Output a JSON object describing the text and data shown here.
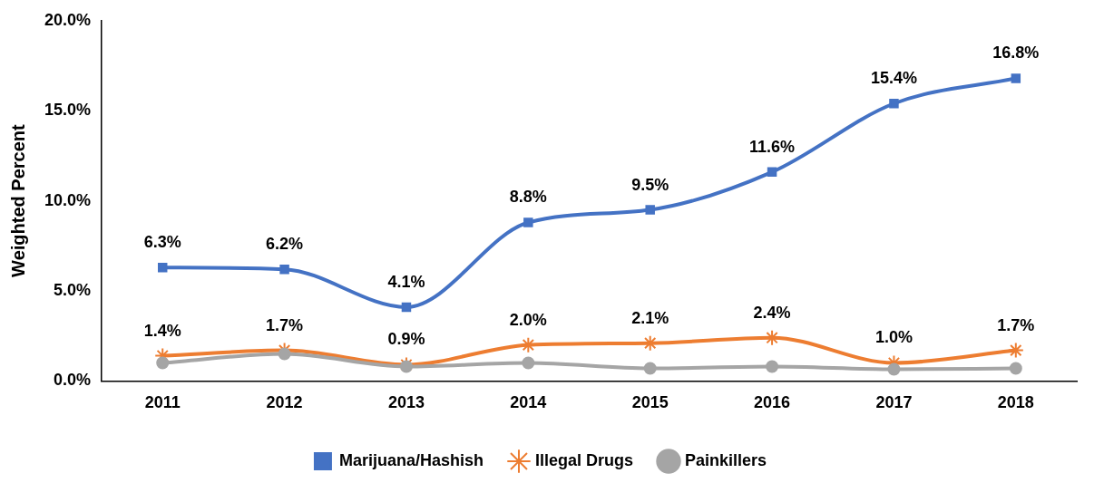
{
  "chart_data": {
    "type": "line",
    "ylabel": "Weighted Percent",
    "categories": [
      "2011",
      "2012",
      "2013",
      "2014",
      "2015",
      "2016",
      "2017",
      "2018"
    ],
    "ylim": [
      0,
      20
    ],
    "yticks": [
      {
        "value": 0,
        "label": "0.0%"
      },
      {
        "value": 5,
        "label": "5.0%"
      },
      {
        "value": 10,
        "label": "10.0%"
      },
      {
        "value": 15,
        "label": "15.0%"
      },
      {
        "value": 20,
        "label": "20.0%"
      }
    ],
    "grid": false,
    "legend": "bottom",
    "line_style": "solid",
    "series": [
      {
        "name": "Marijuana/Hashish",
        "color": "#4472c4",
        "marker": "square",
        "values": [
          6.3,
          6.2,
          4.1,
          8.8,
          9.5,
          11.6,
          15.4,
          16.8
        ],
        "value_labels": [
          "6.3%",
          "6.2%",
          "4.1%",
          "8.8%",
          "9.5%",
          "11.6%",
          "15.4%",
          "16.8%"
        ]
      },
      {
        "name": "Illegal Drugs",
        "color": "#ed7d31",
        "marker": "cross",
        "values": [
          1.4,
          1.7,
          0.9,
          2.0,
          2.1,
          2.4,
          1.0,
          1.7
        ],
        "value_labels": [
          "1.4%",
          "1.7%",
          "0.9%",
          "2.0%",
          "2.1%",
          "2.4%",
          "1.0%",
          "1.7%"
        ]
      },
      {
        "name": "Painkillers",
        "color": "#a5a5a5",
        "marker": "circle",
        "values": [
          1.0,
          1.5,
          0.8,
          1.0,
          0.7,
          0.8,
          0.65,
          0.7
        ]
      }
    ]
  }
}
